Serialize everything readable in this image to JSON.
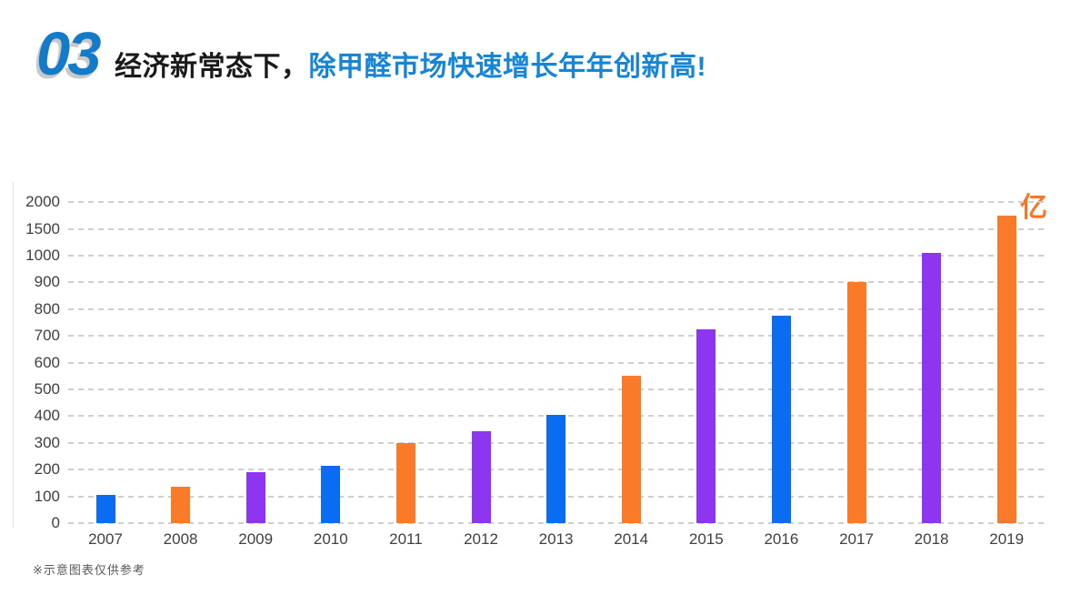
{
  "header": {
    "section_number": "03",
    "title_black": "经济新常态下，",
    "title_blue": "除甲醛市场快速增长年年创新高!"
  },
  "chart_data": {
    "type": "bar",
    "categories": [
      "2007",
      "2008",
      "2009",
      "2010",
      "2011",
      "2012",
      "2013",
      "2014",
      "2015",
      "2016",
      "2017",
      "2018",
      "2019"
    ],
    "values": [
      105,
      135,
      190,
      215,
      300,
      345,
      405,
      550,
      725,
      775,
      900,
      1050,
      1750
    ],
    "unit_label": "亿",
    "y_ticks": [
      0,
      100,
      200,
      300,
      400,
      500,
      600,
      700,
      800,
      900,
      1000,
      1500,
      2000
    ],
    "y_scale_note": "piecewise: equal pixel spacing per tick; 100 per step up to 1000, 500 per step above 1000",
    "grid": "horizontal dashed",
    "legend": "none",
    "bar_colors": [
      "blue",
      "orange",
      "purple",
      "blue",
      "orange",
      "purple",
      "blue",
      "orange",
      "purple",
      "blue",
      "orange",
      "purple",
      "orange"
    ],
    "palette": {
      "blue": "#0a6cf0",
      "orange": "#f97a28",
      "purple": "#8d35f0"
    },
    "gridline_color": "#cfcfcf",
    "tick_text_color": "#404040"
  },
  "footnote": "※示意图表仅供参考"
}
